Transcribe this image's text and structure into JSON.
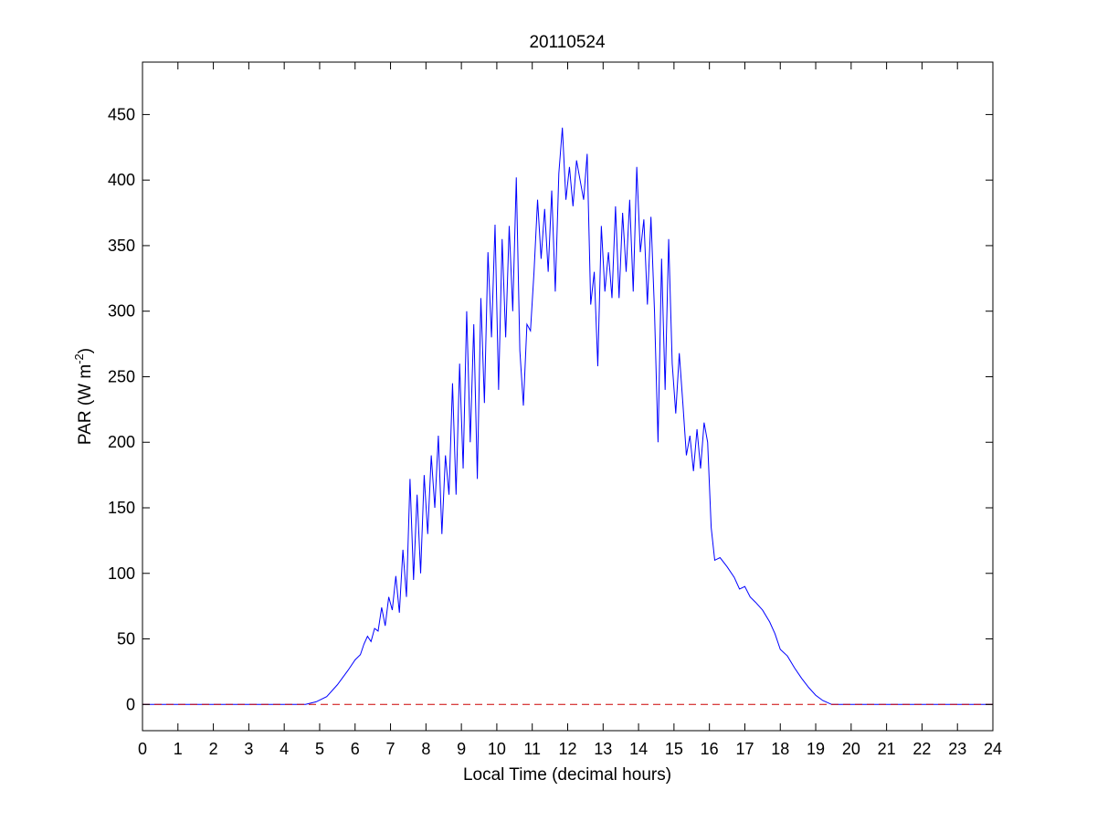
{
  "chart_data": {
    "type": "line",
    "title": "20110524",
    "xlabel": "Local Time (decimal hours)",
    "ylabel": "PAR (W m",
    "ylabel_sup": "-2",
    "ylabel_close": ")",
    "xlim": [
      0,
      24
    ],
    "ylim": [
      -20,
      490
    ],
    "xticks": [
      0,
      1,
      2,
      3,
      4,
      5,
      6,
      7,
      8,
      9,
      10,
      11,
      12,
      13,
      14,
      15,
      16,
      17,
      18,
      19,
      20,
      21,
      22,
      23,
      24
    ],
    "yticks": [
      0,
      50,
      100,
      150,
      200,
      250,
      300,
      350,
      400,
      450
    ],
    "grid": false,
    "series": [
      {
        "style": "solid",
        "color": "#0000ff",
        "points": [
          [
            0,
            0
          ],
          [
            4.6,
            0
          ],
          [
            4.9,
            2
          ],
          [
            5.2,
            6
          ],
          [
            5.5,
            15
          ],
          [
            5.8,
            26
          ],
          [
            6.0,
            34
          ],
          [
            6.15,
            38
          ],
          [
            6.25,
            46
          ],
          [
            6.35,
            52
          ],
          [
            6.45,
            48
          ],
          [
            6.55,
            58
          ],
          [
            6.65,
            56
          ],
          [
            6.75,
            74
          ],
          [
            6.85,
            60
          ],
          [
            6.95,
            82
          ],
          [
            7.05,
            72
          ],
          [
            7.15,
            98
          ],
          [
            7.25,
            70
          ],
          [
            7.35,
            118
          ],
          [
            7.45,
            82
          ],
          [
            7.55,
            172
          ],
          [
            7.65,
            95
          ],
          [
            7.75,
            160
          ],
          [
            7.85,
            100
          ],
          [
            7.95,
            175
          ],
          [
            8.05,
            130
          ],
          [
            8.15,
            190
          ],
          [
            8.25,
            150
          ],
          [
            8.35,
            205
          ],
          [
            8.45,
            130
          ],
          [
            8.55,
            190
          ],
          [
            8.65,
            160
          ],
          [
            8.75,
            245
          ],
          [
            8.85,
            160
          ],
          [
            8.95,
            260
          ],
          [
            9.05,
            180
          ],
          [
            9.15,
            300
          ],
          [
            9.25,
            200
          ],
          [
            9.35,
            290
          ],
          [
            9.45,
            172
          ],
          [
            9.55,
            310
          ],
          [
            9.65,
            230
          ],
          [
            9.75,
            345
          ],
          [
            9.85,
            280
          ],
          [
            9.95,
            366
          ],
          [
            10.05,
            240
          ],
          [
            10.15,
            355
          ],
          [
            10.25,
            280
          ],
          [
            10.35,
            365
          ],
          [
            10.45,
            300
          ],
          [
            10.55,
            402
          ],
          [
            10.65,
            270
          ],
          [
            10.75,
            228
          ],
          [
            10.85,
            290
          ],
          [
            10.95,
            285
          ],
          [
            11.05,
            330
          ],
          [
            11.15,
            385
          ],
          [
            11.25,
            340
          ],
          [
            11.35,
            378
          ],
          [
            11.45,
            330
          ],
          [
            11.55,
            392
          ],
          [
            11.65,
            315
          ],
          [
            11.75,
            405
          ],
          [
            11.85,
            440
          ],
          [
            11.95,
            385
          ],
          [
            12.05,
            410
          ],
          [
            12.15,
            380
          ],
          [
            12.25,
            415
          ],
          [
            12.35,
            400
          ],
          [
            12.45,
            385
          ],
          [
            12.55,
            420
          ],
          [
            12.65,
            305
          ],
          [
            12.75,
            330
          ],
          [
            12.85,
            258
          ],
          [
            12.95,
            365
          ],
          [
            13.05,
            315
          ],
          [
            13.15,
            345
          ],
          [
            13.25,
            310
          ],
          [
            13.35,
            380
          ],
          [
            13.45,
            310
          ],
          [
            13.55,
            375
          ],
          [
            13.65,
            330
          ],
          [
            13.75,
            385
          ],
          [
            13.85,
            315
          ],
          [
            13.95,
            410
          ],
          [
            14.05,
            345
          ],
          [
            14.15,
            370
          ],
          [
            14.25,
            305
          ],
          [
            14.35,
            372
          ],
          [
            14.45,
            300
          ],
          [
            14.55,
            200
          ],
          [
            14.65,
            340
          ],
          [
            14.75,
            240
          ],
          [
            14.85,
            355
          ],
          [
            14.95,
            260
          ],
          [
            15.05,
            222
          ],
          [
            15.15,
            268
          ],
          [
            15.25,
            230
          ],
          [
            15.35,
            190
          ],
          [
            15.45,
            205
          ],
          [
            15.55,
            178
          ],
          [
            15.65,
            210
          ],
          [
            15.75,
            180
          ],
          [
            15.85,
            215
          ],
          [
            15.95,
            200
          ],
          [
            16.05,
            135
          ],
          [
            16.15,
            110
          ],
          [
            16.3,
            112
          ],
          [
            16.5,
            105
          ],
          [
            16.7,
            97
          ],
          [
            16.85,
            88
          ],
          [
            17.0,
            90
          ],
          [
            17.15,
            82
          ],
          [
            17.3,
            78
          ],
          [
            17.5,
            72
          ],
          [
            17.7,
            63
          ],
          [
            17.85,
            54
          ],
          [
            18.0,
            42
          ],
          [
            18.2,
            37
          ],
          [
            18.4,
            28
          ],
          [
            18.6,
            20
          ],
          [
            18.8,
            13
          ],
          [
            19.0,
            7
          ],
          [
            19.2,
            3
          ],
          [
            19.45,
            0
          ],
          [
            24,
            0
          ]
        ]
      },
      {
        "style": "dashed",
        "color": "#cc0000",
        "points": [
          [
            0,
            0
          ],
          [
            24,
            0
          ]
        ]
      }
    ]
  }
}
